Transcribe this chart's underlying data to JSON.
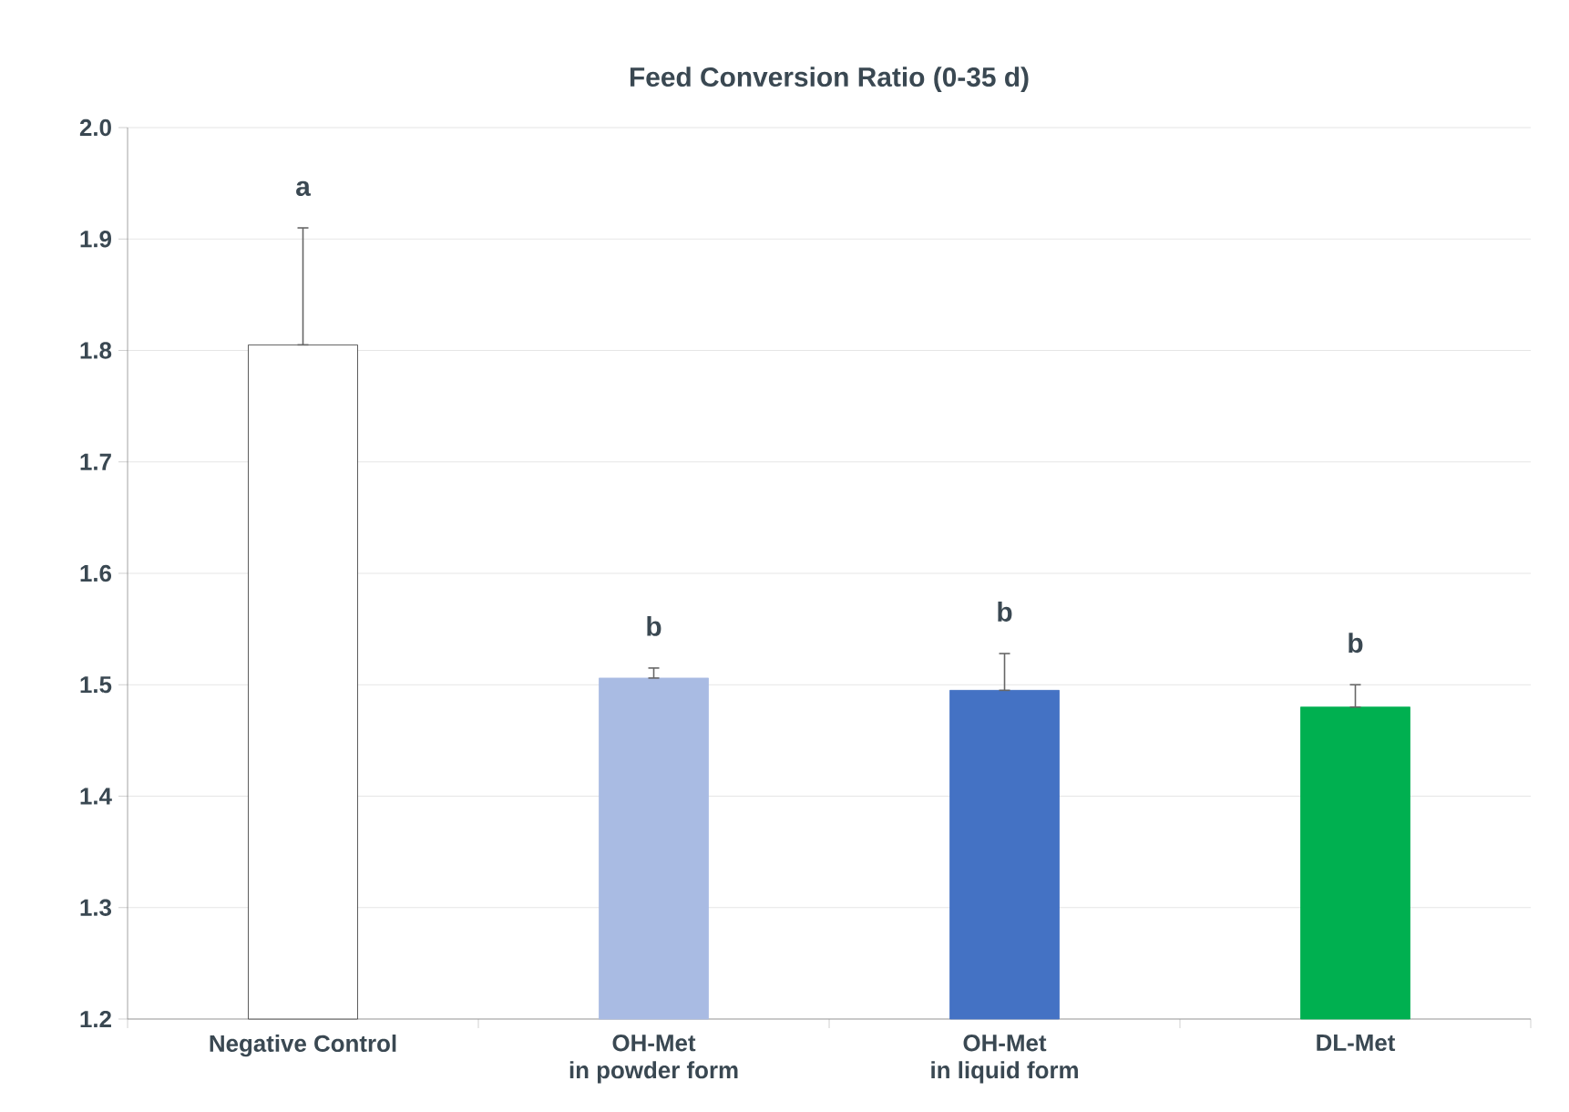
{
  "chart_data": {
    "type": "bar",
    "title": "Feed Conversion Ratio (0-35 d)",
    "categories": [
      "Negative Control",
      "OH-Met\nin powder form",
      "OH-Met\nin liquid form",
      "DL-Met"
    ],
    "values": [
      1.805,
      1.506,
      1.495,
      1.48
    ],
    "colors": [
      "#ffffff",
      "#a9bbe3",
      "#4472c4",
      "#00b050"
    ],
    "errors": [
      [
        1.805,
        1.91
      ],
      [
        1.506,
        1.515
      ],
      [
        1.495,
        1.528
      ],
      [
        1.48,
        1.5
      ]
    ],
    "ylim": [
      1.2,
      2.0
    ],
    "yticks": [
      1.2,
      1.3,
      1.4,
      1.5,
      1.6,
      1.7,
      1.8,
      1.9,
      {
        "value": 2,
        "label": "2.0"
      }
    ],
    "grid": "y",
    "annotations": [
      "a",
      "b",
      "b",
      "b"
    ]
  }
}
